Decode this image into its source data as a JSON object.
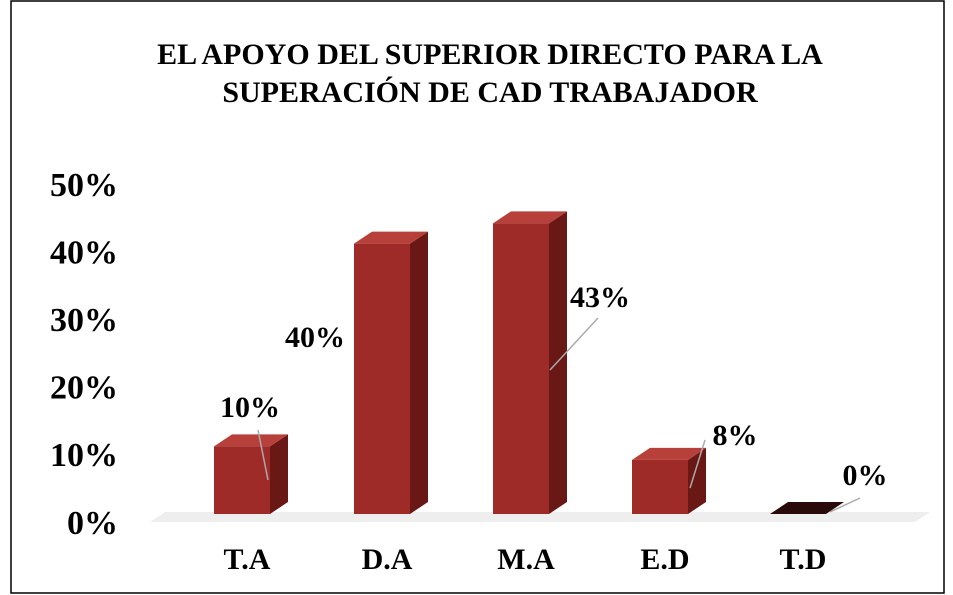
{
  "chart_data": {
    "type": "bar3d",
    "title": "EL APOYO DEL SUPERIOR DIRECTO PARA LA SUPERACIÓN DE CAD TRABAJADOR",
    "categories": [
      "T.A",
      "D.A",
      "M.A",
      "E.D",
      "T.D"
    ],
    "values": [
      10,
      40,
      43,
      8,
      0
    ],
    "value_labels": [
      "10%",
      "40%",
      "43%",
      "8%",
      "0%"
    ],
    "color": "#9e2b27",
    "ylim": [
      0,
      50
    ],
    "yticks": [
      {
        "value": 0,
        "label": "0%"
      },
      {
        "value": 10,
        "label": "10%"
      },
      {
        "value": 20,
        "label": "20%"
      },
      {
        "value": 30,
        "label": "30%"
      },
      {
        "value": 40,
        "label": "40%"
      },
      {
        "value": 50,
        "label": "50%"
      }
    ],
    "grid": false
  }
}
